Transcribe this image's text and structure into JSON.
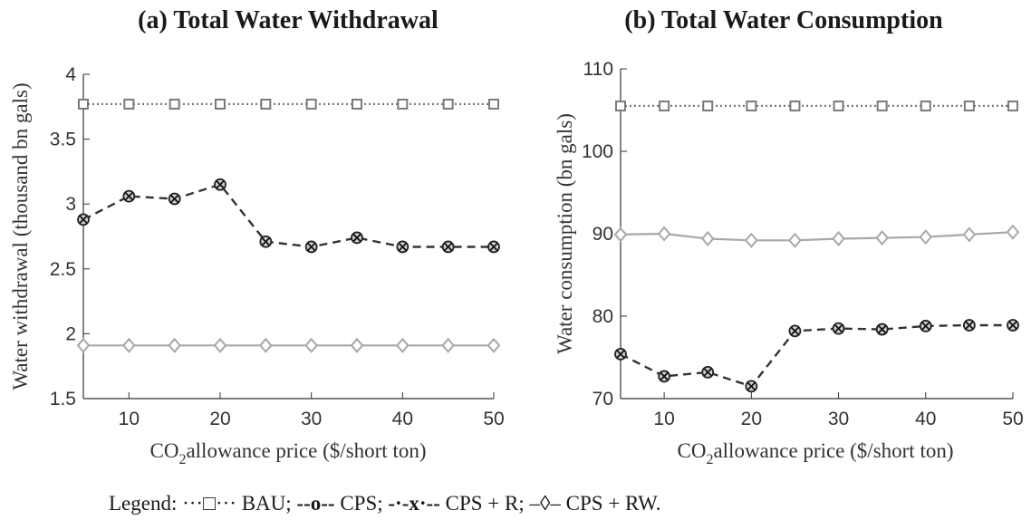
{
  "chart_data": [
    {
      "type": "line",
      "title": "(a) Total Water Withdrawal",
      "xlabel_pre": "CO",
      "xlabel_sub": "2",
      "xlabel_post": "allowance price ($/short ton)",
      "ylabel": "Water withdrawal (thousand bn gals)",
      "xlim": [
        5,
        50
      ],
      "ylim": [
        1.5,
        4
      ],
      "xticks": [
        10,
        20,
        30,
        40,
        50
      ],
      "yticks": [
        1.5,
        2,
        2.5,
        3,
        3.5,
        4
      ],
      "ytick_labels": [
        "1.5",
        "2",
        "2.5",
        "3",
        "3.5",
        "4"
      ],
      "grid": false,
      "x": [
        5,
        10,
        15,
        20,
        25,
        30,
        35,
        40,
        45,
        50
      ],
      "series": [
        {
          "name": "BAU",
          "style": "dotted",
          "marker": "square",
          "color": "#7a7a7a",
          "values": [
            3.77,
            3.77,
            3.77,
            3.77,
            3.77,
            3.77,
            3.77,
            3.77,
            3.77,
            3.77
          ]
        },
        {
          "name": "CPS + R",
          "style": "dashed",
          "marker": "circle-x",
          "color": "#333333",
          "values": [
            2.88,
            3.06,
            3.04,
            3.15,
            2.71,
            2.67,
            2.74,
            2.67,
            2.67,
            2.67
          ]
        },
        {
          "name": "CPS + RW",
          "style": "solid",
          "marker": "diamond",
          "color": "#a8a8a8",
          "values": [
            1.91,
            1.91,
            1.91,
            1.91,
            1.91,
            1.91,
            1.91,
            1.91,
            1.91,
            1.91
          ]
        }
      ]
    },
    {
      "type": "line",
      "title": "(b) Total Water Consumption",
      "xlabel_pre": "CO",
      "xlabel_sub": "2",
      "xlabel_post": "allowance price ($/short ton)",
      "ylabel": "Water consumption (bn gals)",
      "xlim": [
        5,
        50
      ],
      "ylim": [
        70,
        110
      ],
      "xticks": [
        10,
        20,
        30,
        40,
        50
      ],
      "yticks": [
        70,
        80,
        90,
        100,
        110
      ],
      "ytick_labels": [
        "70",
        "80",
        "90",
        "100",
        "110"
      ],
      "grid": false,
      "x": [
        5,
        10,
        15,
        20,
        25,
        30,
        35,
        40,
        45,
        50
      ],
      "series": [
        {
          "name": "BAU",
          "style": "dotted",
          "marker": "square",
          "color": "#7a7a7a",
          "values": [
            105.5,
            105.5,
            105.5,
            105.5,
            105.5,
            105.5,
            105.5,
            105.5,
            105.5,
            105.5
          ]
        },
        {
          "name": "CPS + RW",
          "style": "solid",
          "marker": "diamond",
          "color": "#a8a8a8",
          "values": [
            89.9,
            90.0,
            89.4,
            89.2,
            89.2,
            89.4,
            89.5,
            89.6,
            89.9,
            90.2
          ]
        },
        {
          "name": "CPS + R",
          "style": "dashed",
          "marker": "circle-x",
          "color": "#333333",
          "values": [
            75.4,
            72.7,
            73.2,
            71.5,
            78.2,
            78.5,
            78.4,
            78.8,
            78.9,
            78.9
          ]
        }
      ]
    }
  ],
  "legend": {
    "lead": "Legend: ",
    "items": [
      {
        "sym": "···□···",
        "label": " BAU; "
      },
      {
        "sym": "--o--",
        "label": "  CPS; "
      },
      {
        "sym": "-·-x·--",
        "label": " CPS + R; "
      },
      {
        "sym": "–◊–",
        "label": " CPS + RW."
      }
    ]
  }
}
